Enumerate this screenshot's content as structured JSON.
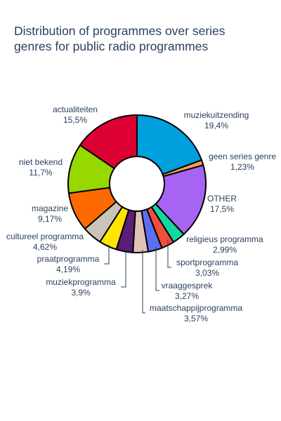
{
  "chart_data": {
    "type": "pie",
    "hole": true,
    "title": "Distribution of programmes over series genres for public radio programmes",
    "title_lines": [
      "Distribution of programmes over series",
      "genres for public radio programmes"
    ],
    "slices": [
      {
        "label": "muziekuitzending",
        "value": 19.4,
        "value_text": "19,4%",
        "color": "#00a0dc"
      },
      {
        "label": "geen series genre",
        "value": 1.23,
        "value_text": "1,23%",
        "color": "#ff9e57"
      },
      {
        "label": "OTHER",
        "value": 17.5,
        "value_text": "17,5%",
        "color": "#a764f2"
      },
      {
        "label": "religieus programma",
        "value": 2.99,
        "value_text": "2,99%",
        "color": "#13d6a0"
      },
      {
        "label": "sportprogramma",
        "value": 3.03,
        "value_text": "3,03%",
        "color": "#f24e3c"
      },
      {
        "label": "vraaggesprek",
        "value": 3.27,
        "value_text": "3,27%",
        "color": "#5d6ef5"
      },
      {
        "label": "maatschappijprogramma",
        "value": 3.57,
        "value_text": "3,57%",
        "color": "#e2c2b4"
      },
      {
        "label": "muziekprogramma",
        "value": 3.9,
        "value_text": "3,9%",
        "color": "#5c1e78"
      },
      {
        "label": "praatprogramma",
        "value": 4.19,
        "value_text": "4,19%",
        "color": "#ffe500"
      },
      {
        "label": "cultureel programma",
        "value": 4.62,
        "value_text": "4,62%",
        "color": "#cbc4b8"
      },
      {
        "label": "magazine",
        "value": 9.17,
        "value_text": "9,17%",
        "color": "#ff6a00"
      },
      {
        "label": "niet bekend",
        "value": 11.7,
        "value_text": "11,7%",
        "color": "#96d800"
      },
      {
        "label": "actualiteiten",
        "value": 15.5,
        "value_text": "15,5%",
        "color": "#dc0033"
      }
    ]
  }
}
